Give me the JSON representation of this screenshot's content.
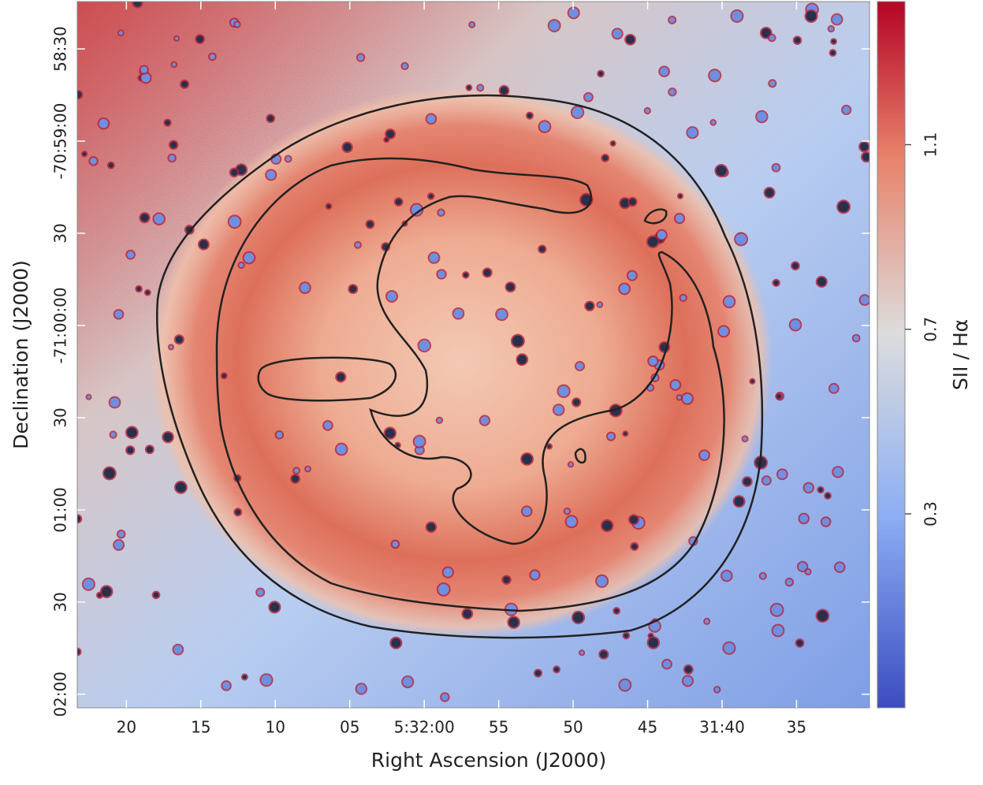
{
  "chart_data": {
    "type": "image",
    "x_label": "Right Ascension (J2000)",
    "y_label": "Declination (J2000)",
    "colorbar_label": "SII / Hα",
    "xlim": [
      19943.3,
      19890.1
    ],
    "xticks": [
      {
        "value": 19940,
        "label": "20"
      },
      {
        "value": 19935,
        "label": "15"
      },
      {
        "value": 19930,
        "label": "10"
      },
      {
        "value": 19925,
        "label": "05"
      },
      {
        "value": 19920,
        "label": "5:32:00"
      },
      {
        "value": 19915,
        "label": "55"
      },
      {
        "value": 19910,
        "label": "50"
      },
      {
        "value": 19905,
        "label": "45"
      },
      {
        "value": 19900,
        "label": "31:40"
      },
      {
        "value": 19895,
        "label": "35"
      }
    ],
    "ylim": [
      -255724.4,
      -255494.6
    ],
    "yticks": [
      {
        "value": -255510,
        "label": "58:30"
      },
      {
        "value": -255540,
        "label": "-70:59:00"
      },
      {
        "value": -255570,
        "label": "30"
      },
      {
        "value": -255600,
        "label": "-71:00:00"
      },
      {
        "value": -255630,
        "label": "30"
      },
      {
        "value": -255660,
        "label": "01:00"
      },
      {
        "value": -255690,
        "label": "30"
      },
      {
        "value": -255720,
        "label": "02:00"
      }
    ],
    "clim": [
      -0.12,
      1.41
    ],
    "cticks": [
      0.3,
      0.7,
      1.1
    ]
  }
}
